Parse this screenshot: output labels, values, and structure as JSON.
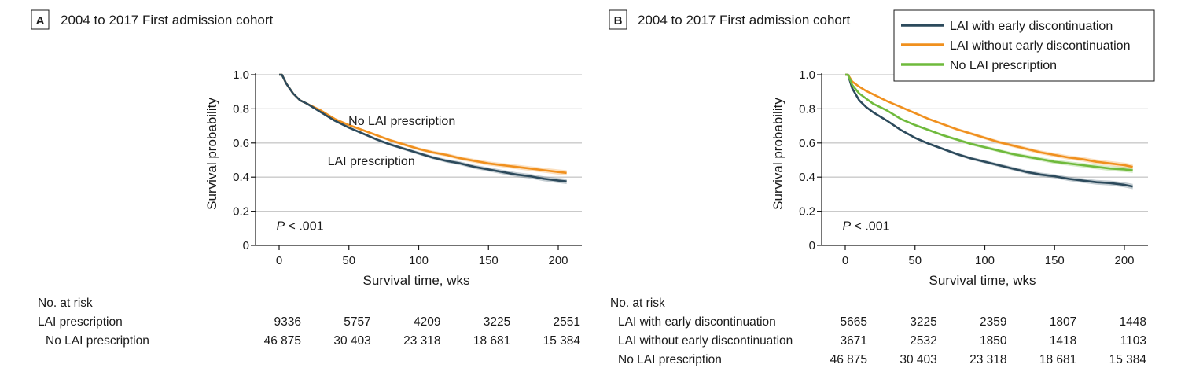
{
  "chart_data": [
    {
      "type": "line",
      "panel_label": "A",
      "title": "2004 to 2017 First admission cohort",
      "xlabel": "Survival time, wks",
      "ylabel": "Survival probability",
      "xlim": [
        -10,
        210
      ],
      "ylim": [
        0,
        1.0
      ],
      "x_ticks": [
        0,
        50,
        100,
        150,
        200
      ],
      "x_tick_labels": [
        "0",
        "50",
        "100",
        "150",
        "200"
      ],
      "y_ticks": [
        0,
        0.2,
        0.4,
        0.6,
        0.8,
        1.0
      ],
      "y_tick_labels": [
        "0",
        "0.2",
        "0.4",
        "0.6",
        "0.8",
        "1.0"
      ],
      "grid": "horizontal",
      "legend": "none",
      "annotations": [
        {
          "text": "No LAI prescription",
          "x": 88,
          "y": 0.705
        },
        {
          "text": "LAI prescription",
          "x": 66,
          "y": 0.47
        },
        {
          "text_italic": "P",
          "text": " < .001",
          "x": -2,
          "y": 0.09
        }
      ],
      "series": [
        {
          "name": "No LAI prescription",
          "color": "#f0901e",
          "x": [
            0,
            2,
            5,
            10,
            15,
            20,
            30,
            40,
            50,
            60,
            70,
            80,
            90,
            100,
            110,
            120,
            130,
            140,
            150,
            160,
            170,
            180,
            190,
            200,
            206
          ],
          "y": [
            1.0,
            1.0,
            0.95,
            0.89,
            0.85,
            0.83,
            0.79,
            0.74,
            0.705,
            0.675,
            0.645,
            0.615,
            0.59,
            0.565,
            0.545,
            0.53,
            0.51,
            0.495,
            0.48,
            0.47,
            0.46,
            0.45,
            0.44,
            0.43,
            0.425
          ]
        },
        {
          "name": "LAI prescription",
          "color": "#2c4a5c",
          "x": [
            0,
            2,
            5,
            10,
            15,
            20,
            30,
            40,
            50,
            60,
            70,
            80,
            90,
            100,
            110,
            120,
            130,
            140,
            150,
            160,
            170,
            180,
            190,
            200,
            206
          ],
          "y": [
            1.0,
            1.0,
            0.95,
            0.89,
            0.85,
            0.83,
            0.78,
            0.73,
            0.69,
            0.655,
            0.62,
            0.59,
            0.565,
            0.54,
            0.515,
            0.495,
            0.48,
            0.46,
            0.445,
            0.43,
            0.415,
            0.405,
            0.39,
            0.38,
            0.375
          ]
        }
      ],
      "risk_table": {
        "header": "No. at risk",
        "rows": [
          {
            "label": "LAI prescription",
            "values": [
              "9336",
              "5757",
              "4209",
              "3225",
              "2551"
            ]
          },
          {
            "label": "No LAI prescription",
            "values": [
              "46 875",
              "30 403",
              "23 318",
              "18 681",
              "15 384"
            ]
          }
        ]
      }
    },
    {
      "type": "line",
      "panel_label": "B",
      "title": "2004 to 2017 First admission cohort",
      "xlabel": "Survival time, wks",
      "ylabel": "Survival probability",
      "xlim": [
        -10,
        210
      ],
      "ylim": [
        0,
        1.0
      ],
      "x_ticks": [
        0,
        50,
        100,
        150,
        200
      ],
      "x_tick_labels": [
        "0",
        "50",
        "100",
        "150",
        "200"
      ],
      "y_ticks": [
        0,
        0.2,
        0.4,
        0.6,
        0.8,
        1.0
      ],
      "y_tick_labels": [
        "0",
        "0.2",
        "0.4",
        "0.6",
        "0.8",
        "1.0"
      ],
      "grid": "horizontal",
      "legend": "top-right",
      "annotations": [
        {
          "text_italic": "P",
          "text": " < .001",
          "x": -2,
          "y": 0.09
        }
      ],
      "series": [
        {
          "name": "LAI with early discontinuation",
          "color": "#2c4a5c",
          "x": [
            0,
            2,
            5,
            10,
            15,
            20,
            30,
            40,
            50,
            60,
            70,
            80,
            90,
            100,
            110,
            120,
            130,
            140,
            150,
            160,
            170,
            180,
            190,
            200,
            206
          ],
          "y": [
            1.0,
            1.0,
            0.92,
            0.85,
            0.81,
            0.78,
            0.73,
            0.675,
            0.63,
            0.595,
            0.565,
            0.535,
            0.51,
            0.49,
            0.47,
            0.45,
            0.43,
            0.415,
            0.405,
            0.39,
            0.38,
            0.37,
            0.365,
            0.355,
            0.345
          ]
        },
        {
          "name": "LAI without early discontinuation",
          "color": "#f0901e",
          "x": [
            0,
            2,
            5,
            10,
            15,
            20,
            30,
            40,
            50,
            60,
            70,
            80,
            90,
            100,
            110,
            120,
            130,
            140,
            150,
            160,
            170,
            180,
            190,
            200,
            206
          ],
          "y": [
            1.0,
            1.0,
            0.96,
            0.93,
            0.905,
            0.885,
            0.845,
            0.81,
            0.775,
            0.74,
            0.71,
            0.68,
            0.655,
            0.63,
            0.605,
            0.585,
            0.565,
            0.545,
            0.53,
            0.515,
            0.505,
            0.49,
            0.48,
            0.47,
            0.46
          ]
        },
        {
          "name": "No LAI prescription",
          "color": "#6fba3c",
          "x": [
            0,
            2,
            5,
            10,
            15,
            20,
            30,
            40,
            50,
            60,
            70,
            80,
            90,
            100,
            110,
            120,
            130,
            140,
            150,
            160,
            170,
            180,
            190,
            200,
            206
          ],
          "y": [
            1.0,
            1.0,
            0.94,
            0.89,
            0.86,
            0.83,
            0.79,
            0.74,
            0.705,
            0.675,
            0.645,
            0.62,
            0.595,
            0.575,
            0.555,
            0.535,
            0.52,
            0.505,
            0.49,
            0.48,
            0.47,
            0.46,
            0.45,
            0.445,
            0.44
          ]
        }
      ],
      "risk_table": {
        "header": "No. at risk",
        "rows": [
          {
            "label": "LAI with early discontinuation",
            "values": [
              "5665",
              "3225",
              "2359",
              "1807",
              "1448"
            ]
          },
          {
            "label": "LAI without early discontinuation",
            "values": [
              "3671",
              "2532",
              "1850",
              "1418",
              "1103"
            ]
          },
          {
            "label": "No LAI prescription",
            "values": [
              "46 875",
              "30 403",
              "23 318",
              "18 681",
              "15 384"
            ]
          }
        ]
      }
    }
  ]
}
